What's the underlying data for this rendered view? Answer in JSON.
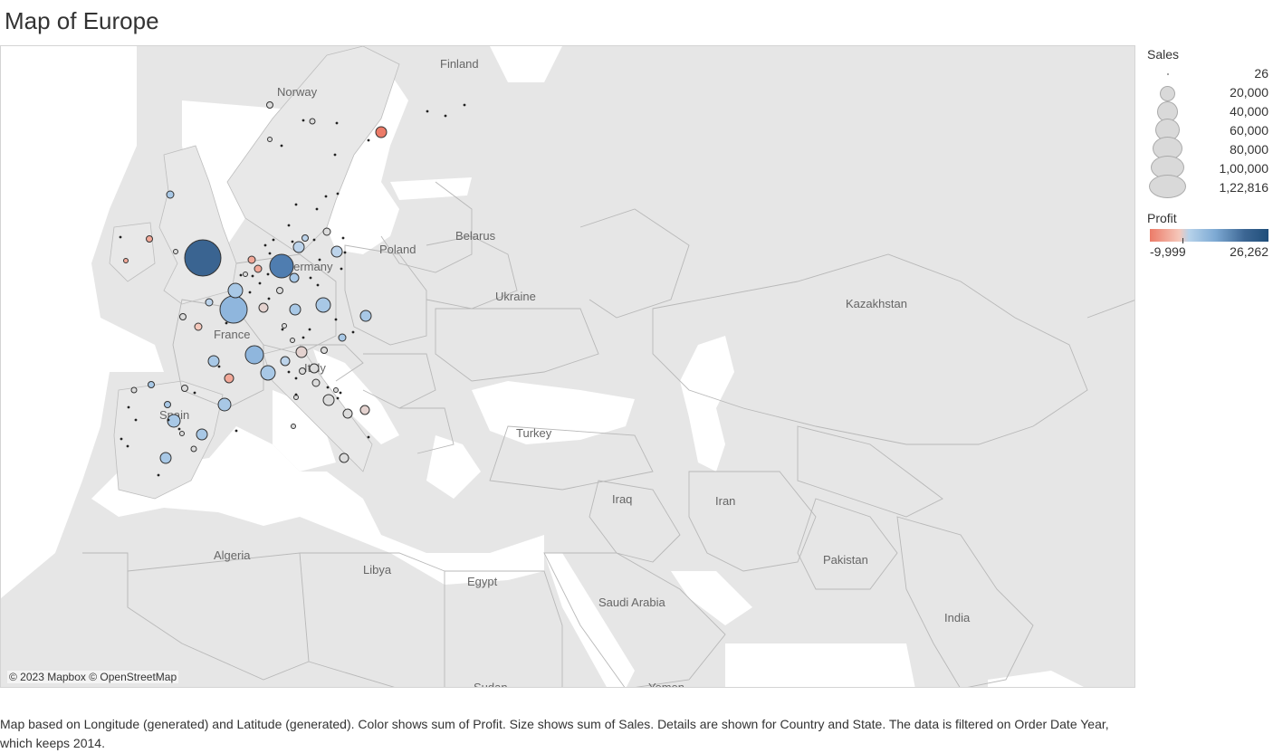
{
  "title": "Map of Europe",
  "attribution": "© 2023 Mapbox © OpenStreetMap",
  "caption": "Map based on Longitude (generated) and Latitude (generated).  Color shows sum of Profit.  Size shows sum of Sales.  Details are shown for Country and State. The data is filtered on Order Date Year, which keeps 2014.",
  "place_labels": [
    "Finland",
    "Norway",
    "Poland",
    "Belarus",
    "Ukraine",
    "Germany",
    "France",
    "Italy",
    "Spain",
    "Turkey",
    "Kazakhstan",
    "Iraq",
    "Iran",
    "Pakistan",
    "India",
    "Algeria",
    "Libya",
    "Egypt",
    "Saudi Arabia",
    "Sudan",
    "Yemen"
  ],
  "legend": {
    "sales_title": "Sales",
    "sales_items": [
      "26",
      "20,000",
      "40,000",
      "60,000",
      "80,000",
      "1,00,000",
      "1,22,816"
    ],
    "profit_title": "Profit",
    "profit_min": "-9,999",
    "profit_max": "26,262"
  },
  "colors": {
    "negative": "#ec7b68",
    "neutral": "#dfd6d4",
    "light_blue": "#a8c8e6",
    "mid_blue": "#7eaad4",
    "dark_blue": "#3a6491",
    "water": "#ffffff",
    "land": "#e6e6e6"
  }
}
